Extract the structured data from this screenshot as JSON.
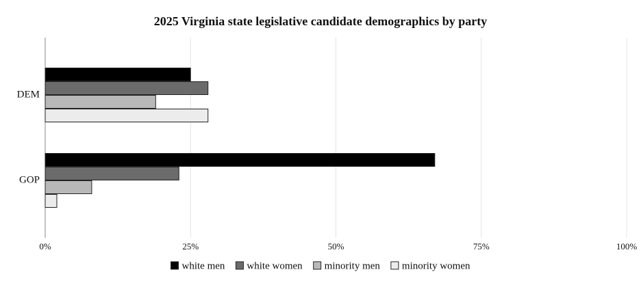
{
  "chart_data": {
    "type": "hbar",
    "title": "2025 Virginia state legislative candidate demographics by party",
    "categories": [
      "DEM",
      "GOP"
    ],
    "series": [
      {
        "name": "white men",
        "color": "#000000",
        "values": [
          25,
          67
        ]
      },
      {
        "name": "white women",
        "color": "#6b6b6b",
        "values": [
          28,
          23
        ]
      },
      {
        "name": "minority men",
        "color": "#b8b8b8",
        "values": [
          19,
          8
        ]
      },
      {
        "name": "minority women",
        "color": "#ececec",
        "values": [
          28,
          2
        ]
      }
    ],
    "xlim": [
      0,
      100
    ],
    "xticks": [
      {
        "value": 0,
        "label": "0%"
      },
      {
        "value": 25,
        "label": "25%"
      },
      {
        "value": 50,
        "label": "50%"
      },
      {
        "value": 75,
        "label": "75%"
      },
      {
        "value": 100,
        "label": "100%"
      }
    ],
    "grid": true,
    "legend": "bottom"
  }
}
